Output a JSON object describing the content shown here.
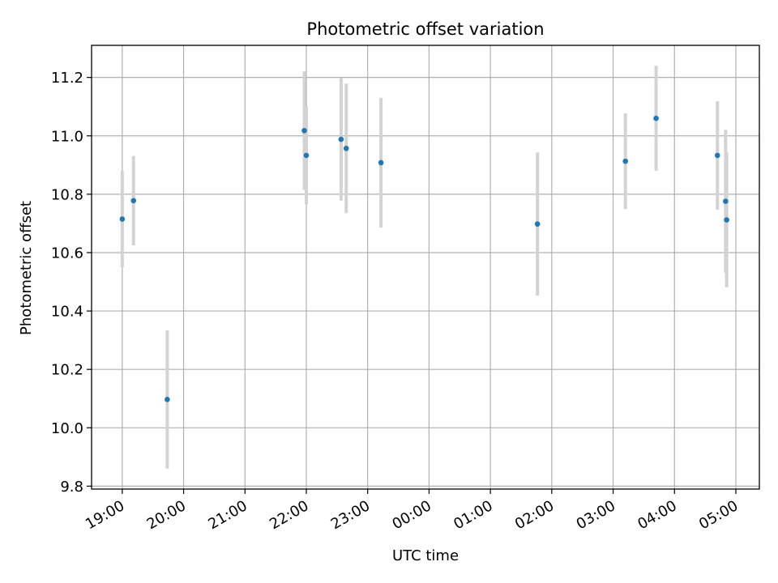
{
  "chart_data": {
    "type": "scatter",
    "title": "Photometric offset variation",
    "xlabel": "UTC time",
    "ylabel": "Photometric offset",
    "x_axis": {
      "ticks": [
        "19:00",
        "20:00",
        "21:00",
        "22:00",
        "23:00",
        "00:00",
        "01:00",
        "02:00",
        "03:00",
        "04:00",
        "05:00"
      ],
      "range": [
        "18:30",
        "05:23"
      ],
      "day_rollover_after": "23:59"
    },
    "y_axis": {
      "ticks": [
        "9.8",
        "10.0",
        "10.2",
        "10.4",
        "10.6",
        "10.8",
        "11.0",
        "11.2"
      ],
      "ylim": [
        9.79,
        11.31
      ]
    },
    "grid": true,
    "colors": {
      "point": "#1f77b4",
      "errorbar": "#d3d3d3",
      "grid": "#b0b0b0"
    },
    "series": [
      {
        "points": [
          {
            "x": "19:00",
            "y": 10.715,
            "err": 0.165
          },
          {
            "x": "19:11",
            "y": 10.778,
            "err": 0.153
          },
          {
            "x": "19:44",
            "y": 10.097,
            "err": 0.237
          },
          {
            "x": "21:58",
            "y": 11.018,
            "err": 0.203
          },
          {
            "x": "22:00",
            "y": 10.933,
            "err": 0.168
          },
          {
            "x": "22:34",
            "y": 10.988,
            "err": 0.21
          },
          {
            "x": "22:39",
            "y": 10.957,
            "err": 0.222
          },
          {
            "x": "23:13",
            "y": 10.908,
            "err": 0.222
          },
          {
            "x": "01:46",
            "y": 10.698,
            "err": 0.245
          },
          {
            "x": "03:12",
            "y": 10.913,
            "err": 0.164
          },
          {
            "x": "03:42",
            "y": 11.06,
            "err": 0.18
          },
          {
            "x": "04:42",
            "y": 10.933,
            "err": 0.186
          },
          {
            "x": "04:50",
            "y": 10.776,
            "err": 0.245
          },
          {
            "x": "04:51",
            "y": 10.712,
            "err": 0.231
          }
        ]
      }
    ]
  }
}
